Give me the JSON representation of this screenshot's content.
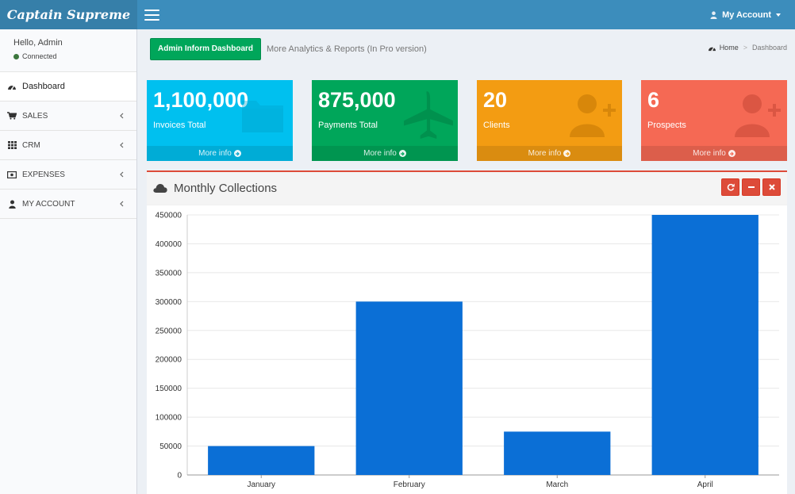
{
  "app": {
    "title": "Captain Supreme"
  },
  "header": {
    "account_label": "My Account"
  },
  "sidebar": {
    "greeting": "Hello, Admin",
    "status": "Connected",
    "items": [
      {
        "label": "Dashboard",
        "icon": "dashboard-icon"
      },
      {
        "label": "SALES",
        "icon": "cart-icon"
      },
      {
        "label": "CRM",
        "icon": "grid-icon"
      },
      {
        "label": "EXPENSES",
        "icon": "money-icon"
      },
      {
        "label": "MY ACCOUNT",
        "icon": "user-icon"
      }
    ]
  },
  "content_header": {
    "button_label": "Admin Inform Dashboard",
    "subtitle": "More Analytics & Reports (In Pro version)",
    "breadcrumb": {
      "home": "Home",
      "separator": ">",
      "current": "Dashboard"
    }
  },
  "tiles": [
    {
      "value": "1,100,000",
      "label": "Invoices Total",
      "more": "More info",
      "color": "#00c0ef",
      "icon": "folder-icon"
    },
    {
      "value": "875,000",
      "label": "Payments Total",
      "more": "More info",
      "color": "#00a65a",
      "icon": "plane-icon"
    },
    {
      "value": "20",
      "label": "Clients",
      "more": "More info",
      "color": "#f39c12",
      "icon": "user-plus-icon"
    },
    {
      "value": "6",
      "label": "Prospects",
      "more": "More info",
      "color": "#f56954",
      "icon": "user-plus-icon"
    }
  ],
  "chart_box": {
    "title": "Monthly Collections"
  },
  "chart_data": {
    "type": "bar",
    "categories": [
      "January",
      "February",
      "March",
      "April"
    ],
    "values": [
      50000,
      300000,
      75000,
      450000
    ],
    "ylim": [
      0,
      450000
    ],
    "yticks": [
      0,
      50000,
      100000,
      150000,
      200000,
      250000,
      300000,
      350000,
      400000,
      450000
    ],
    "bar_color": "#0b6fd6",
    "grid": true
  }
}
